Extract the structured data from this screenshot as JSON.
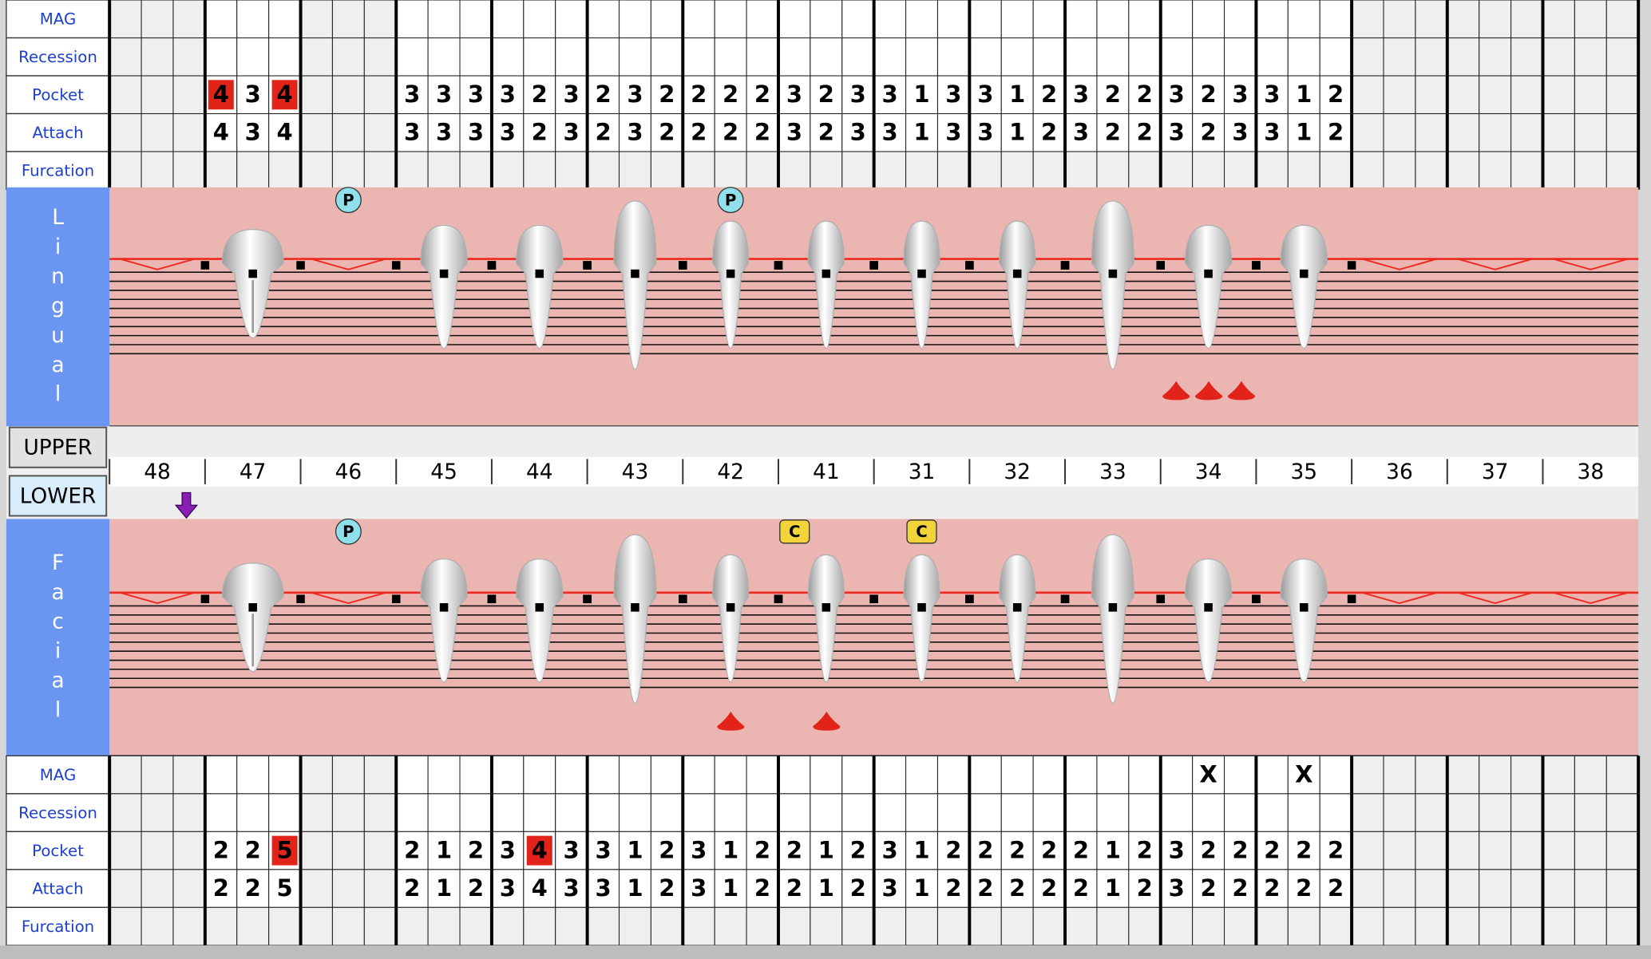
{
  "teeth": [
    "48",
    "47",
    "46",
    "45",
    "44",
    "43",
    "42",
    "41",
    "31",
    "32",
    "33",
    "34",
    "35",
    "36",
    "37",
    "38"
  ],
  "buttons": {
    "upper": "UPPER",
    "lower": "LOWER"
  },
  "highlight_threshold": 4,
  "lingual": {
    "label": "Lingual",
    "rows": [
      {
        "label": "MAG",
        "values": [
          null,
          null,
          null,
          null,
          null,
          null,
          null,
          null,
          null,
          null,
          null,
          null,
          null,
          null,
          null,
          null
        ]
      },
      {
        "label": "Recession",
        "values": [
          null,
          null,
          null,
          null,
          null,
          null,
          null,
          null,
          null,
          null,
          null,
          null,
          null,
          null,
          null,
          null
        ]
      },
      {
        "label": "Pocket",
        "values": [
          null,
          [
            4,
            3,
            4
          ],
          null,
          [
            3,
            3,
            3
          ],
          [
            3,
            2,
            3
          ],
          [
            2,
            3,
            2
          ],
          [
            2,
            2,
            2
          ],
          [
            3,
            2,
            3
          ],
          [
            3,
            1,
            3
          ],
          [
            3,
            1,
            2
          ],
          [
            3,
            2,
            2
          ],
          [
            3,
            2,
            3
          ],
          [
            3,
            1,
            2
          ],
          null,
          null,
          null
        ]
      },
      {
        "label": "Attach",
        "values": [
          null,
          [
            4,
            3,
            4
          ],
          null,
          [
            3,
            3,
            3
          ],
          [
            3,
            2,
            3
          ],
          [
            2,
            3,
            2
          ],
          [
            2,
            2,
            2
          ],
          [
            3,
            2,
            3
          ],
          [
            3,
            1,
            3
          ],
          [
            3,
            1,
            2
          ],
          [
            3,
            2,
            2
          ],
          [
            3,
            2,
            3
          ],
          [
            3,
            1,
            2
          ],
          null,
          null,
          null
        ]
      },
      {
        "label": "Furcation",
        "values": [
          null,
          null,
          null,
          null,
          null,
          null,
          null,
          null,
          null,
          null,
          null,
          null,
          null,
          null,
          null,
          null
        ]
      }
    ],
    "markers": [
      {
        "tooth": "46",
        "label": "P"
      },
      {
        "tooth": "42",
        "label": "P"
      }
    ]
  },
  "facial": {
    "label": "Facial",
    "rows": [
      {
        "label": "MAG",
        "values": [
          null,
          null,
          null,
          null,
          null,
          null,
          null,
          null,
          null,
          null,
          null,
          [
            null,
            "X",
            null
          ],
          [
            null,
            "X",
            null
          ],
          null,
          null,
          null
        ]
      },
      {
        "label": "Recession",
        "values": [
          null,
          null,
          null,
          null,
          null,
          null,
          null,
          null,
          null,
          null,
          null,
          null,
          null,
          null,
          null,
          null
        ]
      },
      {
        "label": "Pocket",
        "values": [
          null,
          [
            2,
            2,
            5
          ],
          null,
          [
            2,
            1,
            2
          ],
          [
            3,
            4,
            3
          ],
          [
            3,
            1,
            2
          ],
          [
            3,
            1,
            2
          ],
          [
            2,
            1,
            2
          ],
          [
            3,
            1,
            2
          ],
          [
            2,
            2,
            2
          ],
          [
            2,
            1,
            2
          ],
          [
            3,
            2,
            2
          ],
          [
            2,
            2,
            2
          ],
          null,
          null,
          null
        ]
      },
      {
        "label": "Attach",
        "values": [
          null,
          [
            2,
            2,
            5
          ],
          null,
          [
            2,
            1,
            2
          ],
          [
            3,
            4,
            3
          ],
          [
            3,
            1,
            2
          ],
          [
            3,
            1,
            2
          ],
          [
            2,
            1,
            2
          ],
          [
            3,
            1,
            2
          ],
          [
            2,
            2,
            2
          ],
          [
            2,
            1,
            2
          ],
          [
            3,
            2,
            2
          ],
          [
            2,
            2,
            2
          ],
          null,
          null,
          null
        ]
      },
      {
        "label": "Furcation",
        "values": [
          null,
          null,
          null,
          null,
          null,
          null,
          null,
          null,
          null,
          null,
          null,
          null,
          null,
          null,
          null,
          null
        ]
      }
    ],
    "markers": [
      {
        "tooth": "46",
        "label": "P"
      },
      {
        "tooth": "41",
        "label": "C"
      },
      {
        "tooth": "31",
        "label": "C"
      }
    ]
  }
}
